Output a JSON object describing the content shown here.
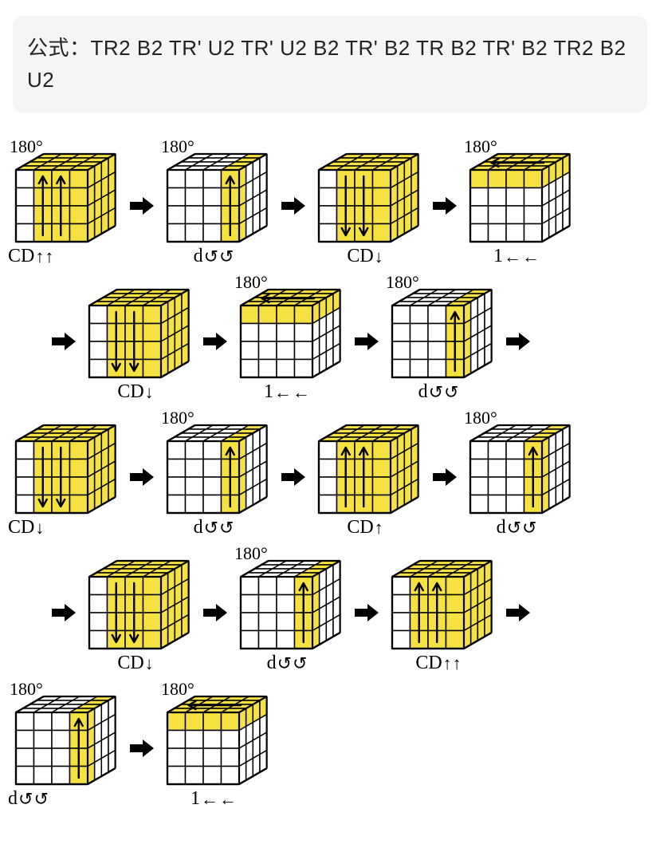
{
  "formula_label": "公式：",
  "formula_moves": "TR2 B2 TR' U2 TR' U2 B2 TR' B2 TR B2 TR' B2 TR2 B2 U2",
  "colors": {
    "bg": "#ffffff",
    "box_bg": "#f5f5f5",
    "line": "#000000",
    "hl": "#f5e141",
    "arrow": "#000000",
    "text": "#000000"
  },
  "cube": {
    "n": 4,
    "iso_angle_deg": 30,
    "front_w": 90,
    "front_h": 90,
    "top_depth": 40,
    "right_depth": 40,
    "stroke_w": 1.5
  },
  "deg_text": "180°",
  "steps": [
    {
      "deg": "180°",
      "bot": "CD↑↑",
      "botpos": "left",
      "top_cols": [
        0,
        1,
        2,
        3
      ],
      "right_cols": [
        0,
        1,
        2,
        3
      ],
      "front_cols": [
        1,
        2,
        3
      ],
      "front_arrows": [
        {
          "col": 1,
          "dir": "up"
        },
        {
          "col": 2,
          "dir": "up"
        }
      ]
    },
    {
      "deg": "180°",
      "bot": "d↺↺",
      "botpos": "mid",
      "top_cols": [
        3
      ],
      "right_cols": [
        0
      ],
      "front_cols": [
        3
      ],
      "front_arrows": [
        {
          "col": 3,
          "dir": "up"
        }
      ]
    },
    {
      "deg": "",
      "bot": "CD↓",
      "botpos": "mid",
      "top_cols": [
        0,
        1,
        2,
        3
      ],
      "right_cols": [
        0,
        1,
        2,
        3
      ],
      "front_cols": [
        1,
        2,
        3
      ],
      "front_arrows": [
        {
          "col": 1,
          "dir": "down"
        },
        {
          "col": 2,
          "dir": "down"
        }
      ]
    },
    {
      "deg": "180°",
      "bot": "1←←",
      "botpos": "mid",
      "top_cols": [
        0,
        1,
        2,
        3
      ],
      "right_cols": [],
      "front_cols": [],
      "top_rows_hl": [
        0,
        1,
        2,
        3
      ],
      "front_rows_hl": [
        0
      ],
      "right_rows_hl": [
        0
      ],
      "top_arrow": "left"
    },
    {
      "deg": "",
      "bot": "CD↓",
      "botpos": "mid",
      "top_cols": [
        0,
        1,
        2,
        3
      ],
      "right_cols": [
        0,
        1,
        2,
        3
      ],
      "front_cols": [
        1,
        2,
        3
      ],
      "front_arrows": [
        {
          "col": 1,
          "dir": "down"
        },
        {
          "col": 2,
          "dir": "down"
        }
      ]
    },
    {
      "deg": "180°",
      "bot": "1←←",
      "botpos": "mid",
      "top_cols": [
        0,
        1,
        2,
        3
      ],
      "right_cols": [],
      "front_cols": [],
      "top_rows_hl": [
        0,
        1,
        2,
        3
      ],
      "front_rows_hl": [
        0
      ],
      "right_rows_hl": [
        0
      ],
      "top_arrow": "left"
    },
    {
      "deg": "180°",
      "bot": "d↺↺",
      "botpos": "mid",
      "top_cols": [
        3
      ],
      "right_cols": [
        0
      ],
      "front_cols": [
        3
      ],
      "front_arrows": [
        {
          "col": 3,
          "dir": "up"
        }
      ]
    },
    {
      "deg": "",
      "bot": "CD↓",
      "botpos": "left",
      "top_cols": [
        0,
        1,
        2,
        3
      ],
      "right_cols": [
        0,
        1,
        2,
        3
      ],
      "front_cols": [
        1,
        2,
        3
      ],
      "front_arrows": [
        {
          "col": 1,
          "dir": "down"
        },
        {
          "col": 2,
          "dir": "down"
        }
      ]
    },
    {
      "deg": "180°",
      "bot": "d↺↺",
      "botpos": "mid",
      "top_cols": [
        3
      ],
      "right_cols": [
        0
      ],
      "front_cols": [
        3
      ],
      "front_arrows": [
        {
          "col": 3,
          "dir": "up"
        }
      ]
    },
    {
      "deg": "",
      "bot": "CD↑",
      "botpos": "mid",
      "top_cols": [
        0,
        1,
        2,
        3
      ],
      "right_cols": [
        0,
        1,
        2,
        3
      ],
      "front_cols": [
        1,
        2,
        3
      ],
      "front_arrows": [
        {
          "col": 1,
          "dir": "up"
        },
        {
          "col": 2,
          "dir": "up"
        }
      ]
    },
    {
      "deg": "180°",
      "bot": "d↺↺",
      "botpos": "mid",
      "top_cols": [
        3
      ],
      "right_cols": [
        0
      ],
      "front_cols": [
        3
      ],
      "front_arrows": [
        {
          "col": 3,
          "dir": "up"
        }
      ]
    },
    {
      "deg": "",
      "bot": "CD↓",
      "botpos": "mid",
      "top_cols": [
        0,
        1,
        2,
        3
      ],
      "right_cols": [
        0,
        1,
        2,
        3
      ],
      "front_cols": [
        1,
        2,
        3
      ],
      "front_arrows": [
        {
          "col": 1,
          "dir": "down"
        },
        {
          "col": 2,
          "dir": "down"
        }
      ]
    },
    {
      "deg": "180°",
      "bot": "d↺↺",
      "botpos": "mid",
      "top_cols": [
        3
      ],
      "right_cols": [
        0
      ],
      "front_cols": [
        3
      ],
      "front_arrows": [
        {
          "col": 3,
          "dir": "up"
        }
      ]
    },
    {
      "deg": "",
      "bot": "CD↑↑",
      "botpos": "mid",
      "top_cols": [
        0,
        1,
        2,
        3
      ],
      "right_cols": [
        0,
        1,
        2,
        3
      ],
      "front_cols": [
        1,
        2,
        3
      ],
      "front_arrows": [
        {
          "col": 1,
          "dir": "up"
        },
        {
          "col": 2,
          "dir": "up"
        }
      ]
    },
    {
      "deg": "180°",
      "bot": "d↺↺",
      "botpos": "left",
      "top_cols": [
        3
      ],
      "right_cols": [
        0
      ],
      "front_cols": [
        3
      ],
      "front_arrows": [
        {
          "col": 3,
          "dir": "up"
        }
      ]
    },
    {
      "deg": "180°",
      "bot": "1←←",
      "botpos": "mid",
      "top_cols": [
        0,
        1,
        2,
        3
      ],
      "right_cols": [],
      "front_cols": [],
      "top_rows_hl": [
        0,
        1,
        2,
        3
      ],
      "front_rows_hl": [
        0
      ],
      "right_rows_hl": [
        0
      ],
      "top_arrow": "left"
    }
  ],
  "layout_rows": [
    {
      "indent": false,
      "leading_arrow": false,
      "items": [
        0,
        1,
        2,
        3
      ],
      "trailing_arrow": false
    },
    {
      "indent": true,
      "leading_arrow": true,
      "items": [
        4,
        5,
        6
      ],
      "trailing_arrow": true
    },
    {
      "indent": false,
      "leading_arrow": false,
      "items": [
        7,
        8,
        9,
        10
      ],
      "trailing_arrow": false
    },
    {
      "indent": true,
      "leading_arrow": true,
      "items": [
        11,
        12,
        13
      ],
      "trailing_arrow": true
    },
    {
      "indent": false,
      "leading_arrow": false,
      "items": [
        14,
        15
      ],
      "trailing_arrow": false
    }
  ]
}
